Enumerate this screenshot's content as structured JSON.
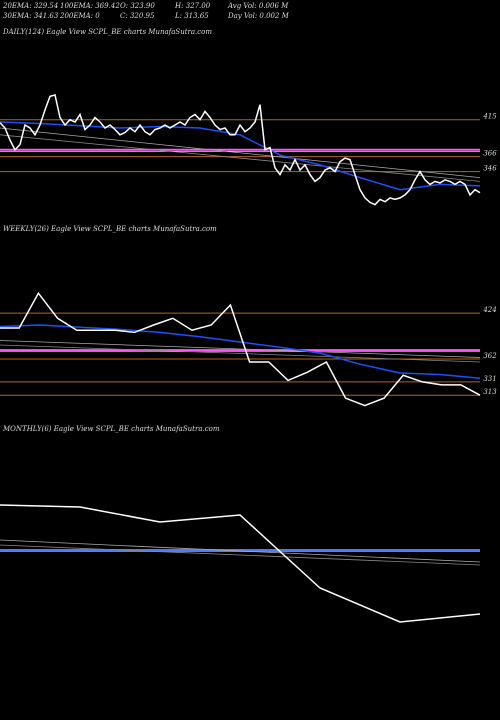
{
  "header": {
    "rows": [
      [
        "20EMA: 329.54",
        "100EMA: 369.42",
        "O: 323.90",
        "H: 327.00",
        "Avg Vol: 0.006  M"
      ],
      [
        "30EMA: 341.63",
        "200EMA: 0",
        "C: 320.95",
        "L: 313.65",
        "Day Vol: 0.002  M"
      ]
    ]
  },
  "chart_data": [
    {
      "type": "line",
      "title": "DAILY(124) Eagle  View  SCPL_BE charts MunafaSutra.com",
      "ylim": [
        275,
        521
      ],
      "yticks": [
        415,
        366,
        346
      ],
      "level_color": "#b5651d",
      "hlines": [
        {
          "value": 375,
          "color": "#ff55ff"
        }
      ],
      "series": [
        {
          "color": "#aaaaaa",
          "values": [
            404,
            338
          ]
        },
        {
          "color": "#888888",
          "values": [
            395,
            333
          ]
        },
        {
          "color": "#1e4fff",
          "values": [
            412,
            410,
            407,
            404,
            406,
            404,
            395,
            368,
            355,
            338,
            322,
            329,
            327
          ]
        },
        {
          "color": "#ffffff",
          "values": [
            411,
            404,
            388,
            375,
            382,
            408,
            404,
            395,
            408,
            428,
            446,
            448,
            418,
            408,
            415,
            412,
            422,
            402,
            408,
            418,
            412,
            404,
            408,
            402,
            395,
            398,
            404,
            399,
            408,
            399,
            395,
            402,
            404,
            408,
            404,
            408,
            412,
            408,
            418,
            422,
            415,
            426,
            418,
            408,
            402,
            404,
            395,
            395,
            408,
            399,
            404,
            412,
            435,
            375,
            378,
            351,
            342,
            355,
            348,
            362,
            348,
            355,
            342,
            333,
            338,
            348,
            351,
            346,
            359,
            364,
            362,
            342,
            322,
            311,
            305,
            302,
            309,
            306,
            311,
            309,
            311,
            315,
            322,
            335,
            346,
            335,
            329,
            333,
            331,
            335,
            333,
            329,
            333,
            329,
            315,
            322,
            318
          ]
        }
      ]
    },
    {
      "type": "line",
      "title": "WEEKLY(26) Eagle  View  SCPL_BE charts MunafaSutra.com",
      "ylim": [
        293,
        523
      ],
      "yticks": [
        424,
        362,
        331,
        313
      ],
      "level_color": "#b5651d",
      "hlines": [
        {
          "value": 374,
          "color": "#ff55ff"
        }
      ],
      "series": [
        {
          "color": "#aaaaaa",
          "values": [
            387,
            364
          ]
        },
        {
          "color": "#888888",
          "values": [
            381,
            358
          ]
        },
        {
          "color": "#1e4fff",
          "values": [
            406,
            408,
            405,
            402,
            398,
            392,
            385,
            378,
            370,
            355,
            343,
            341,
            336
          ]
        },
        {
          "color": "#ffffff",
          "values": [
            404,
            404,
            451,
            417,
            401,
            401,
            401,
            398,
            408,
            417,
            401,
            408,
            435,
            358,
            358,
            333,
            344,
            358,
            309,
            299,
            309,
            340,
            331,
            327,
            327,
            313
          ]
        }
      ]
    },
    {
      "type": "line",
      "title": "MONTHLY(6) Eagle  View  SCPL_BE charts MunafaSutra.com",
      "ylim": [
        216,
        476
      ],
      "yticks": [],
      "level_color": "#b5651d",
      "hlines": [
        {
          "value": 366,
          "color": "#4a7bff"
        }
      ],
      "series": [
        {
          "color": "#aaaaaa",
          "values": [
            376,
            354
          ]
        },
        {
          "color": "#888888",
          "values": [
            371,
            351
          ]
        },
        {
          "color": "#ffffff",
          "values": [
            411,
            409,
            394,
            401,
            328,
            294,
            302
          ]
        }
      ]
    }
  ]
}
